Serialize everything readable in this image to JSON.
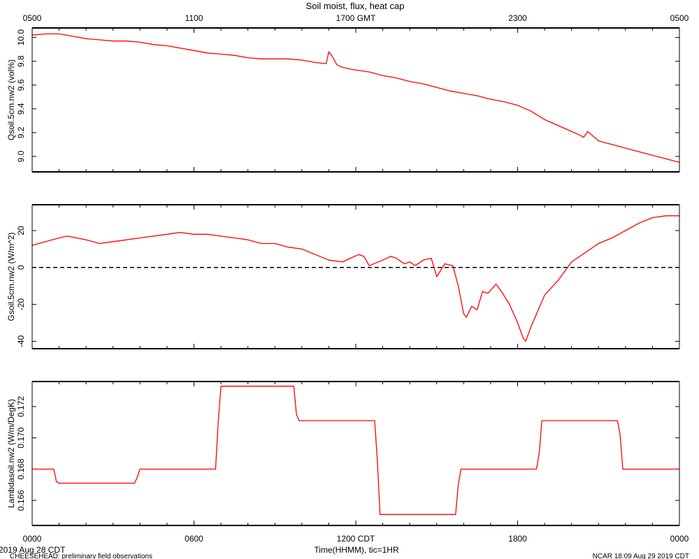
{
  "figure": {
    "title": "Soil moist, flux, heat cap",
    "xlabel": "Time(HHMM), tic=1HR",
    "date_label": "2019 Aug 28 CDT",
    "footer_left": "CHEESEHEAD: preliminary field observations",
    "footer_right": "NCAR 18:09 Aug 29 2019 CDT"
  },
  "colors": {
    "series": "#ff0000",
    "axis": "#000000",
    "zero_line": "#000000"
  },
  "chart_data": [
    {
      "type": "line",
      "ylabel": "Qsoil.5cm.nw2 (vol%)",
      "x_unit": "hours since 0000 CDT",
      "ylim": [
        8.87,
        10.08
      ],
      "yticks": [
        9.0,
        9.2,
        9.4,
        9.6,
        9.8,
        10.0
      ],
      "ytick_labels": [
        "9.0",
        "9.2",
        "9.4",
        "9.6",
        "9.8",
        "10.0"
      ],
      "grid": false,
      "x": [
        0,
        0.5,
        1,
        1.5,
        2,
        2.5,
        3,
        3.5,
        4,
        4.5,
        5,
        5.5,
        6,
        6.5,
        7,
        7.5,
        8,
        8.5,
        9,
        9.5,
        10,
        10.5,
        10.9,
        11.0,
        11.1,
        11.3,
        11.5,
        11.9,
        12.5,
        13,
        13.5,
        14,
        14.5,
        15,
        15.5,
        16,
        16.5,
        17,
        17.5,
        18,
        18.5,
        19,
        19.5,
        20,
        20.3,
        20.45,
        20.6,
        21,
        21.5,
        22,
        22.5,
        23,
        23.5,
        24
      ],
      "values": [
        10.02,
        10.03,
        10.03,
        10.01,
        9.99,
        9.98,
        9.97,
        9.97,
        9.96,
        9.94,
        9.93,
        9.91,
        9.89,
        9.87,
        9.86,
        9.85,
        9.83,
        9.82,
        9.82,
        9.82,
        9.81,
        9.79,
        9.78,
        9.88,
        9.85,
        9.77,
        9.75,
        9.73,
        9.71,
        9.68,
        9.66,
        9.63,
        9.61,
        9.58,
        9.55,
        9.53,
        9.51,
        9.48,
        9.46,
        9.43,
        9.38,
        9.31,
        9.26,
        9.21,
        9.18,
        9.16,
        9.21,
        9.13,
        9.1,
        9.07,
        9.04,
        9.01,
        8.98,
        8.95
      ]
    },
    {
      "type": "line",
      "ylabel": "Gsoil.5cm.nw2 (W/m^2)",
      "x_unit": "hours since 0000 CDT",
      "ylim": [
        -44,
        34
      ],
      "yticks": [
        -40,
        -20,
        0,
        20
      ],
      "ytick_labels": [
        "-40",
        "-20",
        "0",
        "20"
      ],
      "reference_line": 0,
      "grid": false,
      "x": [
        0,
        0.5,
        1,
        1.3,
        2,
        2.5,
        3,
        3.5,
        4,
        5,
        5.5,
        6,
        6.5,
        7,
        7.5,
        8,
        8.5,
        9,
        9.5,
        10,
        10.5,
        11,
        11.5,
        11.8,
        12.1,
        12.3,
        12.5,
        13,
        13.3,
        13.5,
        13.8,
        14,
        14.2,
        14.5,
        14.8,
        15.0,
        15.3,
        15.6,
        15.8,
        16,
        16.1,
        16.3,
        16.5,
        16.7,
        16.9,
        17.2,
        17.4,
        17.7,
        18,
        18.2,
        18.3,
        18.5,
        19,
        19.5,
        20,
        20.5,
        21,
        21.5,
        22,
        22.5,
        23,
        23.5,
        24
      ],
      "values": [
        12,
        14,
        16,
        17,
        15,
        13,
        14,
        15,
        16,
        18,
        19,
        18,
        18,
        17,
        16,
        15,
        13,
        13,
        11,
        10,
        7,
        4,
        3,
        5,
        7,
        6,
        1,
        4,
        6,
        5,
        2,
        3,
        1,
        4,
        5,
        -5,
        2,
        1,
        -10,
        -25,
        -27,
        -21,
        -23,
        -13,
        -14,
        -9,
        -13,
        -20,
        -30,
        -38,
        -40,
        -32,
        -15,
        -7,
        3,
        8,
        13,
        16,
        20,
        24,
        27,
        28,
        28
      ]
    },
    {
      "type": "line",
      "ylabel": "Lambdasoil.nw2 (W/m/DegK)",
      "x_unit": "hours since 0000 CDT",
      "ylim": [
        0.1644,
        0.1736
      ],
      "yticks": [
        0.166,
        0.168,
        0.17,
        0.172
      ],
      "ytick_labels": [
        "0.166",
        "0.168",
        "0.170",
        "0.172"
      ],
      "grid": false,
      "x": [
        0,
        0.8,
        0.9,
        1.0,
        3.8,
        3.9,
        4.0,
        6.8,
        6.9,
        7.0,
        9.7,
        9.8,
        9.9,
        12.7,
        12.8,
        12.9,
        15.7,
        15.8,
        15.9,
        18.7,
        18.8,
        18.9,
        21.7,
        21.8,
        21.9,
        24
      ],
      "values": [
        0.168,
        0.168,
        0.1672,
        0.1671,
        0.1671,
        0.1675,
        0.168,
        0.168,
        0.171,
        0.1733,
        0.1733,
        0.1715,
        0.1711,
        0.1711,
        0.1685,
        0.1651,
        0.1651,
        0.167,
        0.168,
        0.168,
        0.169,
        0.1711,
        0.1711,
        0.1702,
        0.168,
        0.168
      ]
    }
  ],
  "x_axis": {
    "range": [
      0,
      24
    ],
    "major_ticks": [
      0,
      6,
      12,
      18,
      24
    ],
    "bottom_labels": [
      "0000",
      "0600",
      "1200 CDT",
      "1800",
      "0000"
    ],
    "top_labels": [
      "0500",
      "1100",
      "1700 GMT",
      "2300",
      "0500"
    ],
    "minor_step_hours": 1
  }
}
